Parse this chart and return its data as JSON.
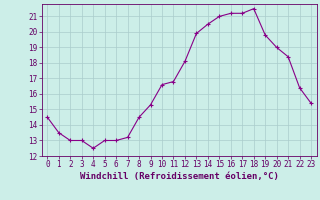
{
  "x": [
    0,
    1,
    2,
    3,
    4,
    5,
    6,
    7,
    8,
    9,
    10,
    11,
    12,
    13,
    14,
    15,
    16,
    17,
    18,
    19,
    20,
    21,
    22,
    23
  ],
  "y": [
    14.5,
    13.5,
    13.0,
    13.0,
    12.5,
    13.0,
    13.0,
    13.2,
    14.5,
    15.3,
    16.6,
    16.8,
    18.1,
    19.9,
    20.5,
    21.0,
    21.2,
    21.2,
    21.5,
    19.8,
    19.0,
    18.4,
    16.4,
    15.4
  ],
  "line_color": "#880088",
  "marker": "+",
  "marker_size": 3.5,
  "marker_linewidth": 0.8,
  "xlabel": "Windchill (Refroidissement éolien,°C)",
  "xlabel_fontsize": 6.5,
  "bg_color": "#cceee8",
  "grid_color": "#aacccc",
  "xlim": [
    -0.5,
    23.5
  ],
  "ylim": [
    12,
    21.8
  ],
  "yticks": [
    12,
    13,
    14,
    15,
    16,
    17,
    18,
    19,
    20,
    21
  ],
  "xticks": [
    0,
    1,
    2,
    3,
    4,
    5,
    6,
    7,
    8,
    9,
    10,
    11,
    12,
    13,
    14,
    15,
    16,
    17,
    18,
    19,
    20,
    21,
    22,
    23
  ],
  "tick_fontsize": 5.5,
  "tick_color": "#660066",
  "spine_color": "#660066",
  "line_width": 0.8
}
